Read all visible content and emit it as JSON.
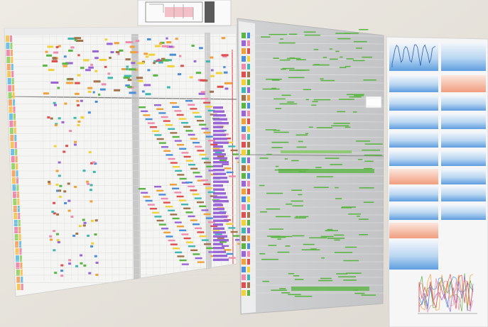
{
  "scene": {
    "description_colors": {
      "wall": "#ebe8e1",
      "wall_shadow": "#d8d4cb",
      "poster_left_bg": "#f4f4f2",
      "poster_mid_bg": "#c9cacc",
      "poster_right_bg": "#f6f6f6",
      "accent_green": "#5bb543",
      "accent_purple": "#9a66d6",
      "accent_orange": "#f0a13a",
      "accent_blue": "#4a8fd8",
      "accent_pink": "#f08bb0",
      "sky_blue": "#8fc0ea",
      "salmon": "#f3b59a"
    }
  }
}
